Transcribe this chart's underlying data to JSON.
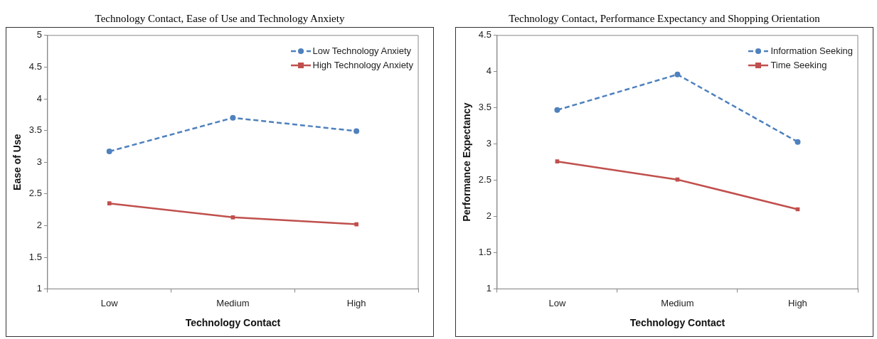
{
  "chart_data": [
    {
      "type": "line",
      "title": "Technology Contact, Ease of Use and Technology Anxiety",
      "xlabel": "Technology Contact",
      "ylabel": "Ease of Use",
      "categories": [
        "Low",
        "Medium",
        "High"
      ],
      "ylim": [
        1,
        5
      ],
      "yticks": [
        1,
        1.5,
        2,
        2.5,
        3,
        3.5,
        4,
        4.5,
        5
      ],
      "legend": "top right",
      "series": [
        {
          "name": "Low Technology Anxiety",
          "color": "#4f81bd",
          "values": [
            3.17,
            3.7,
            3.49
          ],
          "marker": "circle",
          "line_style": "dashed"
        },
        {
          "name": "High Technology Anxiety",
          "color": "#c0504d",
          "values": [
            2.35,
            2.13,
            2.02
          ],
          "marker": "square",
          "line_style": "solid"
        }
      ]
    },
    {
      "type": "line",
      "title": "Technology Contact, Performance Expectancy and Shopping Orientation",
      "xlabel": "Technology Contact",
      "ylabel": "Performance Expectancy",
      "categories": [
        "Low",
        "Medium",
        "High"
      ],
      "ylim": [
        1,
        4.5
      ],
      "yticks": [
        1,
        1.5,
        2,
        2.5,
        3,
        3.5,
        4,
        4.5
      ],
      "legend": "top right",
      "series": [
        {
          "name": "Information Seeking",
          "color": "#4f81bd",
          "values": [
            3.47,
            3.96,
            3.03
          ],
          "marker": "circle",
          "line_style": "dashed"
        },
        {
          "name": "Time Seeking",
          "color": "#c0504d",
          "values": [
            2.76,
            2.51,
            2.1
          ],
          "marker": "square",
          "line_style": "solid"
        }
      ]
    }
  ]
}
